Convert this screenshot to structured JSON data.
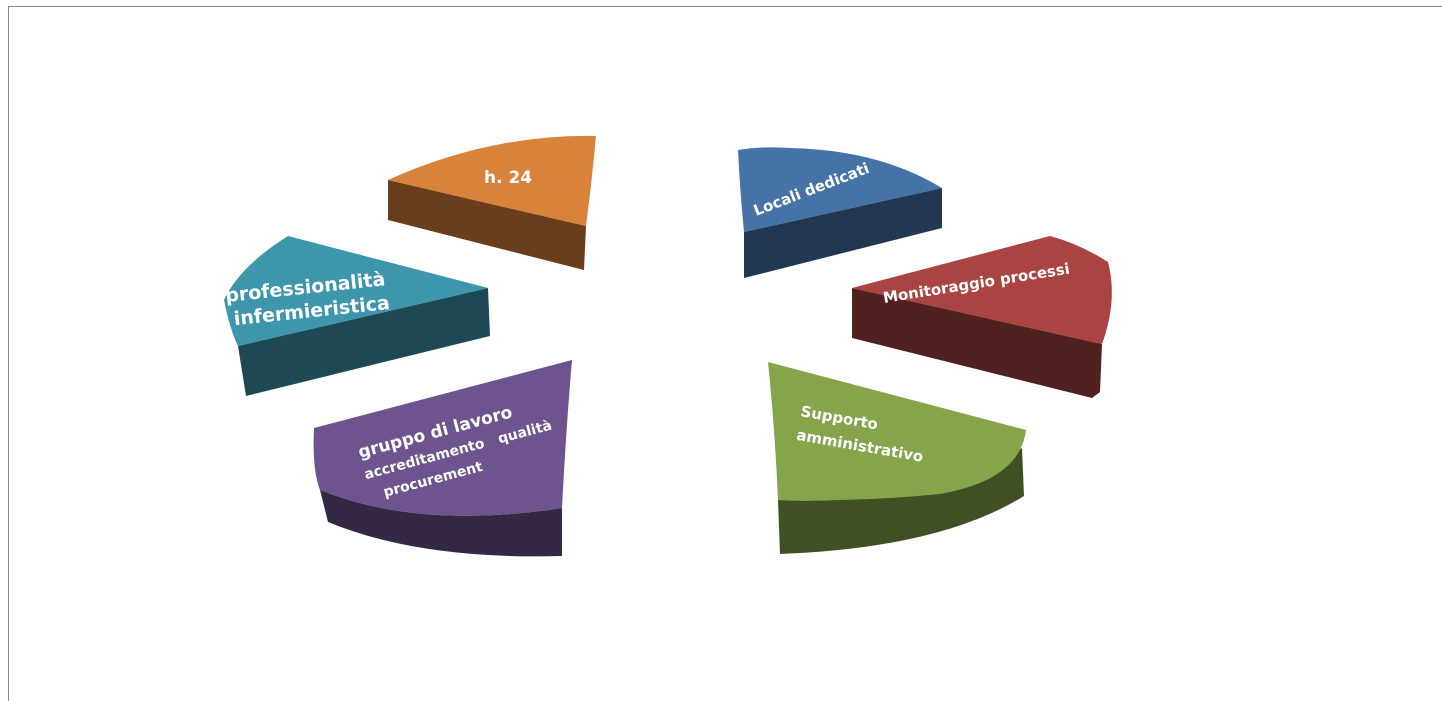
{
  "chart_data": {
    "type": "pie",
    "style": "3d-exploded",
    "title": "",
    "legend": "none",
    "slices": [
      {
        "label": "Locali dedicati",
        "visible_text": [
          "Locali dedicati"
        ],
        "value": 1,
        "color": "#4673A7"
      },
      {
        "label": "Monitoraggio processi",
        "visible_text": [
          "Monitoraggio processi"
        ],
        "value": 1,
        "color": "#A94442"
      },
      {
        "label": "Supporto amministrativo",
        "visible_text": [
          "Supporto",
          "amministrativo"
        ],
        "value": 1,
        "color": "#86A44A"
      },
      {
        "label": "gruppo di lavoro accreditamento qualità procurement",
        "visible_text": [
          "gruppo di lavoro",
          "accreditamento   qualità",
          "procurement"
        ],
        "value": 1,
        "color": "#6D548E"
      },
      {
        "label": "professionalità infermieristica",
        "visible_text": [
          "professionalità",
          "infermieristica"
        ],
        "value": 1,
        "color": "#3E96AC"
      },
      {
        "label": "h. 24",
        "visible_text": [
          "h. 24"
        ],
        "value": 1,
        "color": "#D9823B"
      }
    ]
  }
}
